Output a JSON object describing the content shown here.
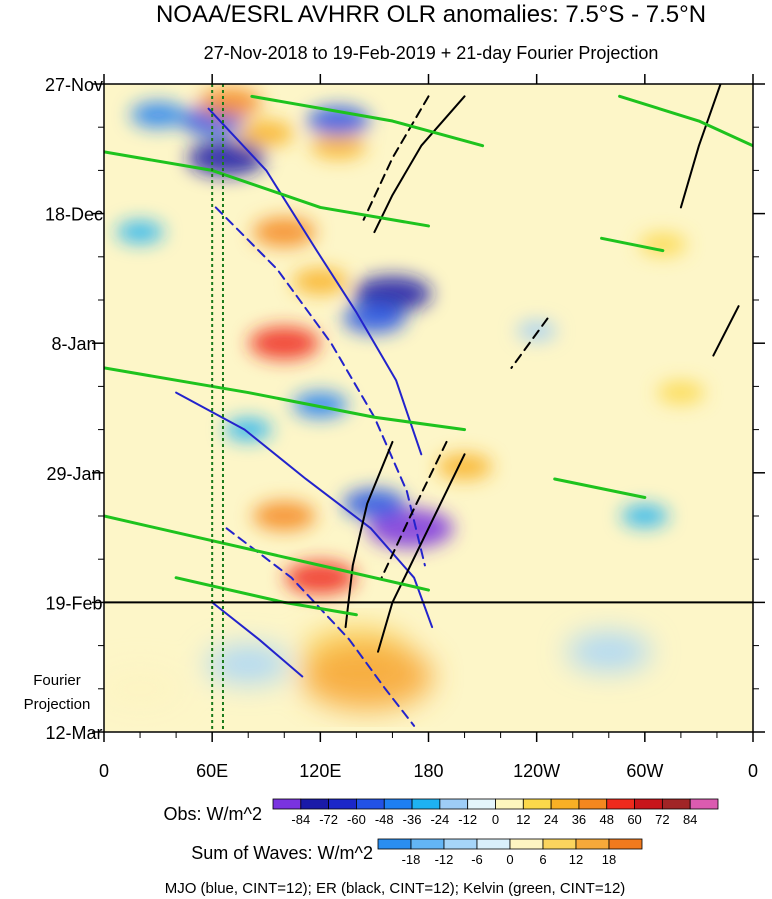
{
  "chart_data": {
    "type": "heatmap",
    "title": "NOAA/ESRL AVHRR OLR anomalies: 7.5°S - 7.5°N",
    "subtitle": "27-Nov-2018 to 19-Feb-2019 + 21-day Fourier Projection",
    "x_tick_labels": [
      "0",
      "60E",
      "120E",
      "180",
      "120W",
      "60W",
      "0"
    ],
    "x_tick_longitudes": [
      0,
      60,
      120,
      180,
      240,
      300,
      360
    ],
    "y_tick_labels": [
      "27-Nov",
      "18-Dec",
      "8-Jan",
      "29-Jan",
      "19-Feb",
      "12-Mar"
    ],
    "y_tick_days": [
      0,
      21,
      42,
      63,
      84,
      105
    ],
    "xlim": [
      0,
      360
    ],
    "ylim_days": [
      0,
      105
    ],
    "projection_start_day": 84,
    "projection_label_line1": "Fourier",
    "projection_label_line2": "Projection",
    "reference_lines_lon": [
      60,
      66
    ],
    "obs_legend": {
      "label": "Obs: W/m^2",
      "levels": [
        -84,
        -72,
        -60,
        -48,
        -36,
        -24,
        -12,
        0,
        12,
        24,
        36,
        48,
        60,
        72,
        84
      ],
      "tick_labels": [
        "-84",
        "-72",
        "-60",
        "-48",
        "-36",
        "-24",
        "-12",
        "0",
        "12",
        "24",
        "36",
        "48",
        "60",
        "72",
        "84"
      ],
      "colors": [
        "#7a33e0",
        "#1a1aa8",
        "#1b27c9",
        "#2252e6",
        "#1e7ff2",
        "#1eb2f2",
        "#9ecdf7",
        "#e4f5fb",
        "#fdf7be",
        "#fbd84a",
        "#f8b025",
        "#f4871f",
        "#ee2a1c",
        "#c8151a",
        "#a12526",
        "#db5bb0"
      ]
    },
    "waves_legend": {
      "label": "Sum of Waves: W/m^2",
      "levels": [
        -18,
        -12,
        -6,
        0,
        6,
        12,
        18
      ],
      "tick_labels": [
        "-18",
        "-12",
        "-6",
        "0",
        "6",
        "12",
        "18"
      ],
      "colors": [
        "#2a8ef0",
        "#63b5f5",
        "#a6d5f8",
        "#d9effb",
        "#fdf4c2",
        "#fbd45e",
        "#f7a93a",
        "#f17a1e"
      ]
    },
    "footer": "MJO (blue, CINT=12); ER (black, CINT=12); Kelvin (green, CINT=12)",
    "wave_contours": [
      {
        "wave": "MJO",
        "color": "#2323cc",
        "sign": "positive",
        "path": [
          [
            58,
            4
          ],
          [
            90,
            14
          ],
          [
            118,
            27
          ],
          [
            140,
            37
          ],
          [
            162,
            48
          ],
          [
            176,
            60
          ]
        ]
      },
      {
        "wave": "MJO",
        "color": "#2323cc",
        "sign": "positive",
        "path": [
          [
            40,
            50
          ],
          [
            78,
            56
          ],
          [
            112,
            64
          ],
          [
            148,
            72
          ],
          [
            172,
            80
          ],
          [
            182,
            88
          ]
        ]
      },
      {
        "wave": "MJO",
        "color": "#2323cc",
        "sign": "negative",
        "path": [
          [
            62,
            20
          ],
          [
            96,
            30
          ],
          [
            126,
            42
          ],
          [
            150,
            54
          ],
          [
            168,
            66
          ],
          [
            178,
            78
          ]
        ]
      },
      {
        "wave": "MJO",
        "color": "#2323cc",
        "sign": "negative",
        "path": [
          [
            68,
            72
          ],
          [
            104,
            80
          ],
          [
            136,
            90
          ],
          [
            156,
            98
          ],
          [
            172,
            104
          ]
        ]
      },
      {
        "wave": "MJO",
        "color": "#2323cc",
        "sign": "positive",
        "path": [
          [
            60,
            84
          ],
          [
            86,
            90
          ],
          [
            110,
            96
          ]
        ]
      },
      {
        "wave": "ER",
        "color": "#000000",
        "sign": "positive",
        "path": [
          [
            160,
            58
          ],
          [
            146,
            68
          ],
          [
            138,
            78
          ],
          [
            134,
            88
          ]
        ]
      },
      {
        "wave": "ER",
        "color": "#000000",
        "sign": "positive",
        "path": [
          [
            200,
            60
          ],
          [
            180,
            72
          ],
          [
            160,
            84
          ],
          [
            152,
            92
          ]
        ]
      },
      {
        "wave": "ER",
        "color": "#000000",
        "sign": "positive",
        "path": [
          [
            200,
            2
          ],
          [
            176,
            10
          ],
          [
            160,
            18
          ],
          [
            150,
            24
          ]
        ]
      },
      {
        "wave": "ER",
        "color": "#000000",
        "sign": "negative",
        "path": [
          [
            180,
            2
          ],
          [
            160,
            12
          ],
          [
            144,
            22
          ]
        ]
      },
      {
        "wave": "ER",
        "color": "#000000",
        "sign": "negative",
        "path": [
          [
            190,
            58
          ],
          [
            170,
            70
          ],
          [
            154,
            80
          ]
        ]
      },
      {
        "wave": "ER",
        "color": "#000000",
        "sign": "negative",
        "path": [
          [
            246,
            38
          ],
          [
            226,
            46
          ]
        ]
      },
      {
        "wave": "ER",
        "color": "#000000",
        "sign": "positive",
        "path": [
          [
            342,
            0
          ],
          [
            330,
            10
          ],
          [
            320,
            20
          ]
        ]
      },
      {
        "wave": "ER",
        "color": "#000000",
        "sign": "positive",
        "path": [
          [
            352,
            36
          ],
          [
            338,
            44
          ]
        ]
      },
      {
        "wave": "Kelvin",
        "color": "#1ec31e",
        "sign": "positive",
        "path": [
          [
            0,
            11
          ],
          [
            60,
            14
          ],
          [
            120,
            20
          ],
          [
            180,
            23
          ]
        ]
      },
      {
        "wave": "Kelvin",
        "color": "#1ec31e",
        "sign": "positive",
        "path": [
          [
            82,
            2
          ],
          [
            160,
            6
          ],
          [
            210,
            10
          ]
        ]
      },
      {
        "wave": "Kelvin",
        "color": "#1ec31e",
        "sign": "positive",
        "path": [
          [
            0,
            46
          ],
          [
            80,
            50
          ],
          [
            150,
            54
          ],
          [
            200,
            56
          ]
        ]
      },
      {
        "wave": "Kelvin",
        "color": "#1ec31e",
        "sign": "positive",
        "path": [
          [
            0,
            70
          ],
          [
            60,
            74
          ],
          [
            120,
            78
          ],
          [
            180,
            82
          ]
        ]
      },
      {
        "wave": "Kelvin",
        "color": "#1ec31e",
        "sign": "positive",
        "path": [
          [
            40,
            80
          ],
          [
            100,
            84
          ],
          [
            140,
            86
          ]
        ]
      },
      {
        "wave": "Kelvin",
        "color": "#1ec31e",
        "sign": "positive",
        "path": [
          [
            286,
            2
          ],
          [
            330,
            6
          ],
          [
            360,
            10
          ]
        ]
      },
      {
        "wave": "Kelvin",
        "color": "#1ec31e",
        "sign": "positive",
        "path": [
          [
            276,
            25
          ],
          [
            310,
            27
          ]
        ]
      },
      {
        "wave": "Kelvin",
        "color": "#1ec31e",
        "sign": "positive",
        "path": [
          [
            250,
            64
          ],
          [
            300,
            67
          ]
        ]
      }
    ],
    "obs_anomaly_features": [
      {
        "lon": 68,
        "day": 12,
        "value": -72
      },
      {
        "lon": 60,
        "day": 6,
        "value": -48
      },
      {
        "lon": 30,
        "day": 5,
        "value": -36
      },
      {
        "lon": 20,
        "day": 24,
        "value": -24
      },
      {
        "lon": 70,
        "day": 3,
        "value": 48
      },
      {
        "lon": 90,
        "day": 8,
        "value": 36
      },
      {
        "lon": 130,
        "day": 10,
        "value": 36
      },
      {
        "lon": 100,
        "day": 24,
        "value": 48
      },
      {
        "lon": 120,
        "day": 32,
        "value": 36
      },
      {
        "lon": 100,
        "day": 42,
        "value": 60
      },
      {
        "lon": 160,
        "day": 34,
        "value": -72
      },
      {
        "lon": 150,
        "day": 38,
        "value": -48
      },
      {
        "lon": 120,
        "day": 52,
        "value": -36
      },
      {
        "lon": 80,
        "day": 56,
        "value": -24
      },
      {
        "lon": 170,
        "day": 72,
        "value": -84
      },
      {
        "lon": 150,
        "day": 68,
        "value": -48
      },
      {
        "lon": 100,
        "day": 70,
        "value": 48
      },
      {
        "lon": 120,
        "day": 80,
        "value": 60
      },
      {
        "lon": 200,
        "day": 62,
        "value": 36
      },
      {
        "lon": 310,
        "day": 26,
        "value": 24
      },
      {
        "lon": 320,
        "day": 50,
        "value": 24
      },
      {
        "lon": 300,
        "day": 70,
        "value": -24
      },
      {
        "lon": 240,
        "day": 40,
        "value": -12
      },
      {
        "lon": 130,
        "day": 6,
        "value": -48
      }
    ],
    "projection_features": [
      {
        "lon": 140,
        "day": 92,
        "value": 12
      },
      {
        "lon": 146,
        "day": 96,
        "value": 18
      },
      {
        "lon": 80,
        "day": 94,
        "value": -6
      },
      {
        "lon": 280,
        "day": 92,
        "value": -6
      },
      {
        "lon": 20,
        "day": 98,
        "value": 6
      }
    ]
  }
}
